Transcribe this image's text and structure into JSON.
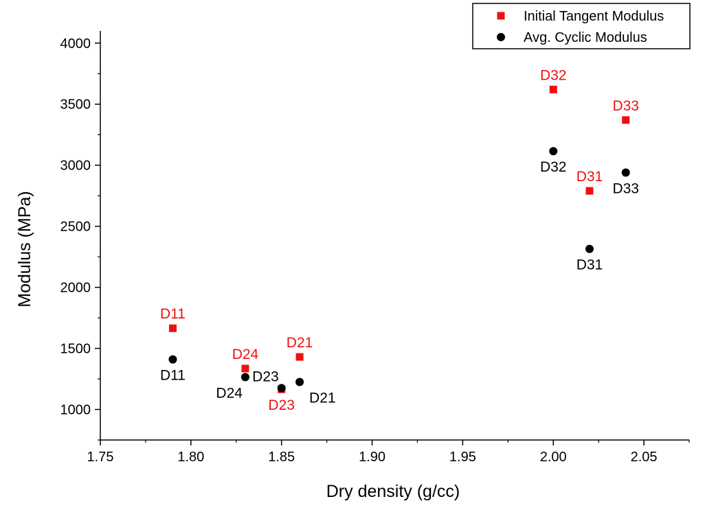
{
  "chart_data": {
    "type": "scatter",
    "xlabel": "Dry density (g/cc)",
    "ylabel": "Modulus (MPa)",
    "xlim": [
      1.75,
      2.075
    ],
    "ylim": [
      750,
      4100
    ],
    "x_ticks": [
      1.75,
      1.8,
      1.85,
      1.9,
      1.95,
      2.0,
      2.05
    ],
    "x_tick_labels": [
      "1.75",
      "1.80",
      "1.85",
      "1.90",
      "1.95",
      "2.00",
      "2.05"
    ],
    "y_ticks": [
      1000,
      1500,
      2000,
      2500,
      3000,
      3500,
      4000
    ],
    "y_tick_labels": [
      "1000",
      "1500",
      "2000",
      "2500",
      "3000",
      "3500",
      "4000"
    ],
    "grid": false,
    "legend_position": "top-right",
    "series": [
      {
        "name": "Initial Tangent Modulus",
        "marker": "square",
        "color": "#ee1111",
        "points": [
          {
            "x": 1.79,
            "y": 1665,
            "label": "D11",
            "label_pos": "above"
          },
          {
            "x": 1.83,
            "y": 1335,
            "label": "D24",
            "label_pos": "above"
          },
          {
            "x": 1.85,
            "y": 1165,
            "label": "D23",
            "label_pos": "below"
          },
          {
            "x": 1.86,
            "y": 1430,
            "label": "D21",
            "label_pos": "above"
          },
          {
            "x": 2.0,
            "y": 3620,
            "label": "D32",
            "label_pos": "above"
          },
          {
            "x": 2.02,
            "y": 2790,
            "label": "D31",
            "label_pos": "above"
          },
          {
            "x": 2.04,
            "y": 3370,
            "label": "D33",
            "label_pos": "above"
          }
        ]
      },
      {
        "name": "Avg. Cyclic Modulus",
        "marker": "circle",
        "color": "#000000",
        "points": [
          {
            "x": 1.79,
            "y": 1410,
            "label": "D11",
            "label_pos": "below"
          },
          {
            "x": 1.83,
            "y": 1265,
            "label": "D24",
            "label_pos": "below-left"
          },
          {
            "x": 1.85,
            "y": 1175,
            "label": "D23",
            "label_pos": "above-left"
          },
          {
            "x": 1.86,
            "y": 1225,
            "label": "D21",
            "label_pos": "below-right"
          },
          {
            "x": 2.0,
            "y": 3115,
            "label": "D32",
            "label_pos": "below"
          },
          {
            "x": 2.02,
            "y": 2315,
            "label": "D31",
            "label_pos": "below"
          },
          {
            "x": 2.04,
            "y": 2940,
            "label": "D33",
            "label_pos": "below"
          }
        ]
      }
    ]
  }
}
